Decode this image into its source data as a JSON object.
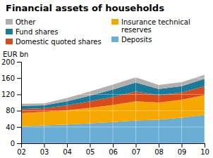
{
  "chart_data": {
    "type": "area",
    "stacked": true,
    "grid": true,
    "title": "Financial assets of households",
    "ylabel": "EUR bn",
    "x": [
      2002,
      2003,
      2004,
      2005,
      2006,
      2007,
      2008,
      2009,
      2010
    ],
    "xlim": [
      2002,
      2010
    ],
    "xticks": [
      {
        "value": 2002,
        "label": "02"
      },
      {
        "value": 2003,
        "label": "03"
      },
      {
        "value": 2004,
        "label": "04"
      },
      {
        "value": 2005,
        "label": "05"
      },
      {
        "value": 2006,
        "label": "06"
      },
      {
        "value": 2007,
        "label": "07"
      },
      {
        "value": 2008,
        "label": "08"
      },
      {
        "value": 2009,
        "label": "09"
      },
      {
        "value": 2010,
        "label": "10"
      }
    ],
    "ylim": [
      0,
      200
    ],
    "yticks": [
      0,
      40,
      80,
      120,
      160,
      200
    ],
    "series": [
      {
        "name": "Deposits",
        "color": "#6aaed6",
        "values": [
          42,
          44,
          46,
          49,
          52,
          56,
          58,
          63,
          70
        ]
      },
      {
        "name": "Insurance technical\nreserves",
        "color": "#f5a800",
        "values": [
          32,
          33,
          35,
          38,
          42,
          47,
          42,
          44,
          48
        ]
      },
      {
        "name": "Domestic quoted shares",
        "color": "#d94c1a",
        "values": [
          10,
          9,
          12,
          16,
          20,
          24,
          18,
          18,
          22
        ]
      },
      {
        "name": "Fund shares",
        "color": "#1a7a9a",
        "values": [
          8,
          7,
          10,
          14,
          18,
          22,
          15,
          15,
          18
        ]
      },
      {
        "name": "Other",
        "color": "#b0b0b0",
        "values": [
          5,
          5,
          8,
          10,
          12,
          13,
          10,
          10,
          10
        ]
      }
    ]
  }
}
